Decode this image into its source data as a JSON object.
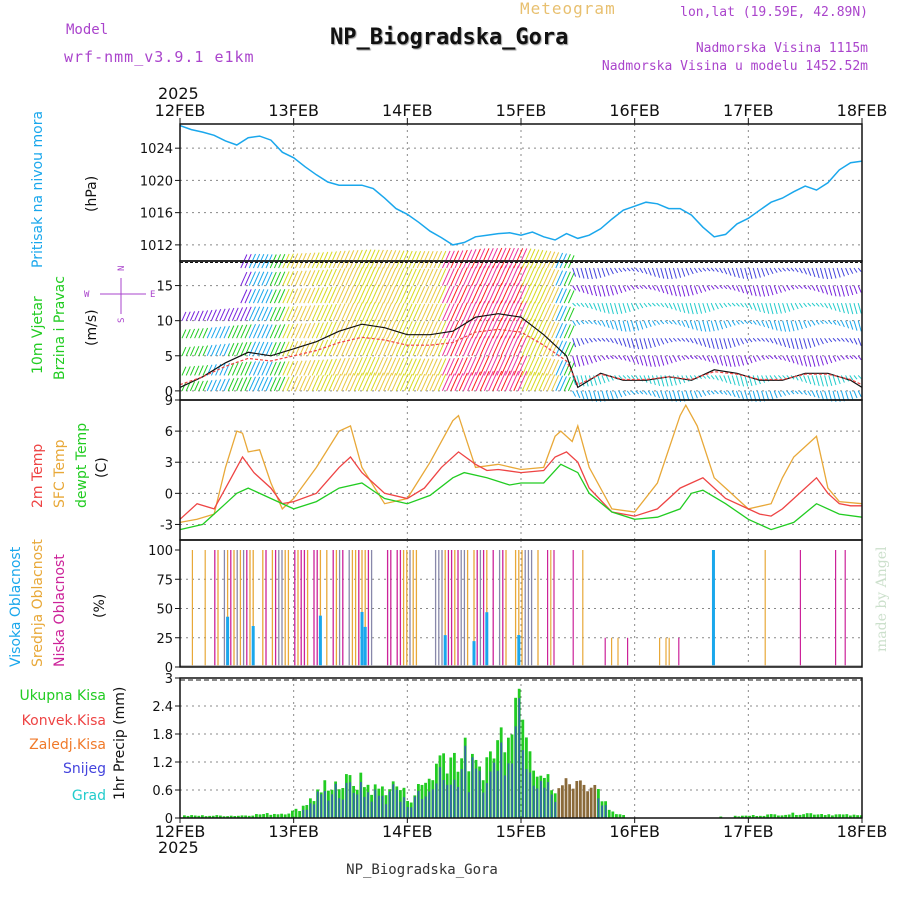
{
  "header": {
    "model_label": "Model",
    "model_name": "wrf-nmm_v3.9.1 e1km",
    "chart_kind": "Meteogram",
    "station_title": "NP_Biogradska_Gora",
    "lonlat": "lon,lat (19.59E, 42.89N)",
    "altitude": "Nadmorska Visina 1115m",
    "model_altitude": "Nadmorska Visina u modelu 1452.52m",
    "footer_station": "NP_Biogradska_Gora",
    "credit": "made by Angel"
  },
  "colors": {
    "pressure": "#1aa7ec",
    "wind_label": "#22cc22",
    "temp_2m": "#ee4444",
    "temp_sfc": "#e8a838",
    "dewpt": "#22cc22",
    "high_cloud": "#1aa7ec",
    "mid_cloud": "#e8a838",
    "low_cloud": "#cc2299",
    "total_precip": "#22cc22",
    "conv_precip": "#ee4444",
    "frozen_precip": "#f07a2a",
    "snow": "#4444dd",
    "hail": "#22cccc",
    "grid": "#888888",
    "header_purple": "#aa44cc",
    "header_yellow": "#e8c070",
    "credit": "#cce0cc"
  },
  "time_axis": {
    "year": "2025",
    "ticks": [
      "12FEB",
      "13FEB",
      "14FEB",
      "15FEB",
      "16FEB",
      "17FEB",
      "18FEB"
    ]
  },
  "chart_data": [
    {
      "type": "line",
      "name": "pressure",
      "ylabel_main": "Pritisak na nivou mora",
      "ylabel_unit": "(hPa)",
      "yticks": [
        "1012",
        "1016",
        "1020",
        "1024"
      ],
      "ylim": [
        1010,
        1027
      ],
      "series": [
        {
          "x": [
            0,
            0.1,
            0.2,
            0.3,
            0.4,
            0.5,
            0.6,
            0.7,
            0.8,
            0.9,
            1.0,
            1.1,
            1.2,
            1.3,
            1.4,
            1.5,
            1.6,
            1.7,
            1.8,
            1.9,
            2.0,
            2.1,
            2.2,
            2.3,
            2.4,
            2.5,
            2.6,
            2.7,
            2.8,
            2.9,
            3.0,
            3.1,
            3.2,
            3.3,
            3.4,
            3.5,
            3.6,
            3.7,
            3.8,
            3.9,
            4.0,
            4.1,
            4.2,
            4.3,
            4.4,
            4.5,
            4.6,
            4.7,
            4.8,
            4.9,
            5.0,
            5.1,
            5.2,
            5.3,
            5.4,
            5.5,
            5.6,
            5.7,
            5.8,
            5.9,
            6.0
          ],
          "values": [
            1026.8,
            1026.3,
            1026.0,
            1025.6,
            1024.9,
            1024.4,
            1025.3,
            1025.5,
            1025.0,
            1023.5,
            1022.8,
            1021.7,
            1020.7,
            1019.8,
            1019.4,
            1019.4,
            1019.4,
            1019.0,
            1017.8,
            1016.5,
            1015.8,
            1014.8,
            1013.7,
            1012.9,
            1012.0,
            1012.3,
            1013.0,
            1013.2,
            1013.4,
            1013.5,
            1013.2,
            1013.6,
            1013.0,
            1012.6,
            1013.4,
            1012.8,
            1013.2,
            1014.0,
            1015.2,
            1016.3,
            1016.8,
            1017.3,
            1017.1,
            1016.5,
            1016.5,
            1015.7,
            1014.2,
            1013.0,
            1013.3,
            1014.6,
            1015.3,
            1016.3,
            1017.3,
            1017.8,
            1018.6,
            1019.3,
            1018.8,
            1019.7,
            1021.3,
            1022.2,
            1022.4
          ]
        }
      ]
    },
    {
      "type": "line",
      "name": "wind",
      "ylabel_main1": "10m Vjetar",
      "ylabel_main2": "Brzina i Pravac",
      "ylabel_unit": "(m/s)",
      "compass_n": "N",
      "compass_s": "S",
      "compass_w": "W",
      "compass_e": "E",
      "yticks": [
        "0",
        "5",
        "10",
        "15"
      ],
      "ylim": [
        -1.3,
        18.5
      ],
      "series": [
        {
          "name": "wind speed",
          "x": [
            0,
            0.2,
            0.4,
            0.6,
            0.8,
            1.0,
            1.2,
            1.4,
            1.6,
            1.8,
            2.0,
            2.2,
            2.4,
            2.6,
            2.8,
            3.0,
            3.2,
            3.4,
            3.5,
            3.7,
            3.9,
            4.1,
            4.3,
            4.5,
            4.7,
            4.9,
            5.1,
            5.3,
            5.5,
            5.7,
            5.9,
            6.0
          ],
          "values": [
            0.5,
            2.0,
            4.0,
            5.5,
            5.0,
            6.0,
            7.0,
            8.5,
            9.5,
            9.0,
            8.0,
            8.0,
            8.5,
            10.5,
            11.0,
            10.5,
            8.0,
            5.0,
            0.5,
            2.5,
            1.5,
            1.5,
            2.0,
            1.5,
            3.0,
            2.5,
            1.5,
            1.5,
            2.5,
            2.5,
            1.5,
            0.5
          ]
        }
      ]
    },
    {
      "type": "line",
      "name": "temperature",
      "ylabel_main1": "2m Temp",
      "ylabel_main2": "SFC Temp",
      "ylabel_main3": "dewpt Temp",
      "ylabel_unit": "(C)",
      "yticks": [
        "-3",
        "0",
        "3",
        "6",
        "9"
      ],
      "ylim": [
        -4.5,
        9
      ],
      "series": [
        {
          "name": "2m Temp",
          "x": [
            0,
            0.15,
            0.3,
            0.45,
            0.5,
            0.55,
            0.65,
            0.8,
            0.9,
            1.0,
            1.2,
            1.4,
            1.5,
            1.6,
            1.8,
            2.0,
            2.15,
            2.3,
            2.45,
            2.6,
            2.7,
            2.8,
            3.0,
            3.2,
            3.3,
            3.4,
            3.5,
            3.6,
            3.8,
            4.0,
            4.2,
            4.4,
            4.6,
            4.8,
            5.0,
            5.1,
            5.2,
            5.3,
            5.4,
            5.6,
            5.7,
            5.8,
            5.9,
            6.0
          ],
          "values": [
            -2.5,
            -1.0,
            -1.5,
            1.5,
            2.5,
            3.5,
            2.0,
            0.5,
            -1.0,
            -0.8,
            0.0,
            2.5,
            3.5,
            2.0,
            0.0,
            -0.5,
            0.5,
            2.5,
            4.0,
            2.8,
            2.2,
            2.3,
            2.0,
            2.2,
            3.5,
            4.0,
            3.0,
            0.5,
            -1.8,
            -2.2,
            -1.5,
            0.5,
            1.5,
            -0.5,
            -1.5,
            -2.0,
            -2.2,
            -1.5,
            -0.5,
            1.5,
            0.0,
            -1.0,
            -1.2,
            -1.2
          ]
        },
        {
          "name": "SFC Temp",
          "x": [
            0,
            0.15,
            0.3,
            0.4,
            0.5,
            0.55,
            0.6,
            0.7,
            0.8,
            0.9,
            1.0,
            1.2,
            1.4,
            1.5,
            1.6,
            1.8,
            2.0,
            2.2,
            2.4,
            2.45,
            2.6,
            2.8,
            3.0,
            3.2,
            3.3,
            3.35,
            3.45,
            3.5,
            3.6,
            3.8,
            4.0,
            4.2,
            4.4,
            4.45,
            4.55,
            4.7,
            4.8,
            5.0,
            5.2,
            5.3,
            5.4,
            5.6,
            5.7,
            5.8,
            6.0
          ],
          "values": [
            -2.8,
            -2.5,
            -2.0,
            2.5,
            6.0,
            5.8,
            4.0,
            4.2,
            1.0,
            -1.5,
            -0.5,
            2.5,
            6.0,
            6.5,
            2.5,
            -1.0,
            -0.5,
            3.0,
            7.0,
            7.5,
            2.5,
            2.8,
            2.3,
            2.5,
            5.5,
            6.0,
            5.0,
            6.5,
            2.5,
            -1.5,
            -1.8,
            1.0,
            7.5,
            8.5,
            6.5,
            1.5,
            0.5,
            -1.5,
            -1.0,
            1.5,
            3.5,
            5.5,
            0.5,
            -0.8,
            -1.0
          ]
        },
        {
          "name": "dewpt Temp",
          "x": [
            0,
            0.2,
            0.4,
            0.5,
            0.6,
            0.8,
            1.0,
            1.2,
            1.4,
            1.6,
            1.8,
            2.0,
            2.2,
            2.4,
            2.5,
            2.7,
            2.9,
            3.0,
            3.2,
            3.35,
            3.5,
            3.6,
            3.8,
            4.0,
            4.2,
            4.4,
            4.5,
            4.6,
            4.8,
            5.0,
            5.2,
            5.4,
            5.6,
            5.8,
            6.0
          ],
          "values": [
            -3.5,
            -3.0,
            -1.0,
            0.0,
            0.5,
            -0.5,
            -1.5,
            -0.8,
            0.5,
            1.0,
            -0.5,
            -1.0,
            -0.2,
            1.5,
            2.0,
            1.5,
            0.8,
            1.0,
            1.0,
            2.8,
            2.0,
            0.0,
            -1.8,
            -2.5,
            -2.3,
            -1.5,
            0.0,
            0.3,
            -1.0,
            -2.5,
            -3.5,
            -2.8,
            -1.0,
            -2.0,
            -2.3
          ]
        }
      ]
    },
    {
      "type": "bar",
      "name": "cloud",
      "ylabel_main1": "Visoka Oblacnost",
      "ylabel_main2": "Srednja Oblacnost",
      "ylabel_main3": "Niska Oblacnost",
      "ylabel_unit": "(%)",
      "yticks": [
        "0",
        "25",
        "50",
        "75",
        "100"
      ],
      "ylim": [
        0,
        100
      ]
    },
    {
      "type": "bar",
      "name": "precip",
      "legend": [
        "Ukupna Kisa",
        "Konvek.Kisa",
        "Zaledj.Kisa",
        "Snijeg",
        "Grad"
      ],
      "ylabel_unit": "1hr Precip (mm)",
      "yticks": [
        "0",
        "0.6",
        "1.2",
        "1.8",
        "2.4",
        "3"
      ],
      "ylim": [
        0,
        3
      ],
      "total": {
        "x": [
          0.5,
          0.7,
          0.9,
          1.0,
          1.1,
          1.2,
          1.3,
          1.4,
          1.5,
          1.6,
          1.7,
          1.8,
          1.9,
          2.0,
          2.1,
          2.2,
          2.3,
          2.4,
          2.5,
          2.6,
          2.7,
          2.8,
          2.9,
          3.0,
          3.1,
          3.2,
          3.3,
          3.4,
          3.5,
          3.6,
          3.7,
          3.8,
          4.0,
          4.5,
          5.0,
          5.5,
          6.0
        ],
        "values": [
          0.05,
          0.08,
          0.1,
          0.15,
          0.3,
          0.5,
          0.8,
          0.7,
          0.8,
          0.75,
          0.6,
          0.65,
          0.7,
          0.4,
          0.65,
          0.9,
          1.4,
          1.3,
          1.35,
          1.0,
          1.25,
          1.65,
          2.4,
          2.85,
          1.3,
          0.85,
          0.5,
          0.1,
          0.85,
          0.65,
          0.5,
          0.1,
          0.0,
          0.0,
          0.05,
          0.1,
          0.05
        ]
      }
    }
  ]
}
